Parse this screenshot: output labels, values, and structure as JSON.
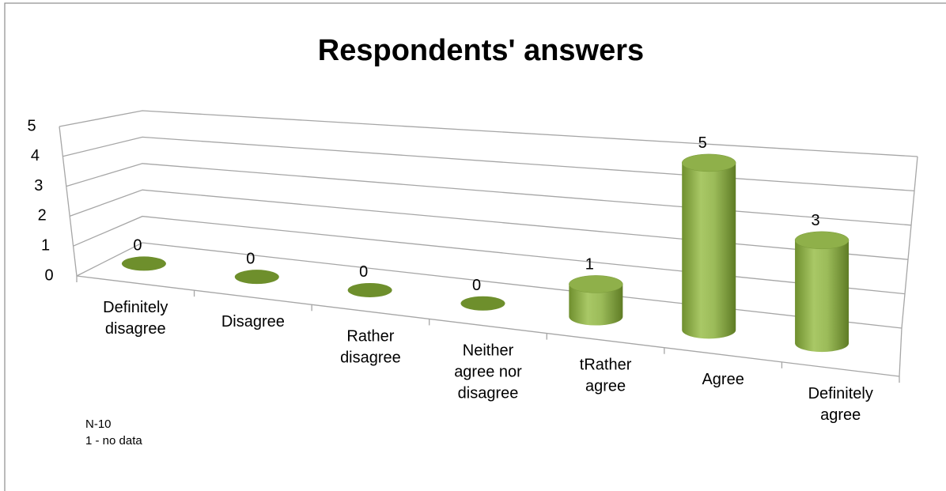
{
  "chart_data": {
    "type": "bar3d",
    "title": "Respondents' answers",
    "categories": [
      "Definitely disagree",
      "Disagree",
      "Rather disagree",
      "Neither agree nor disagree",
      "tRather agree",
      "Agree",
      "Definitely agree"
    ],
    "values": [
      0,
      0,
      0,
      0,
      1,
      5,
      3
    ],
    "color": "#9bbb59",
    "ylim": [
      0,
      5
    ],
    "yticks": [
      0,
      1,
      2,
      3,
      4,
      5
    ],
    "grid": true,
    "annotations": [
      "N-10",
      "1 - no data"
    ]
  }
}
